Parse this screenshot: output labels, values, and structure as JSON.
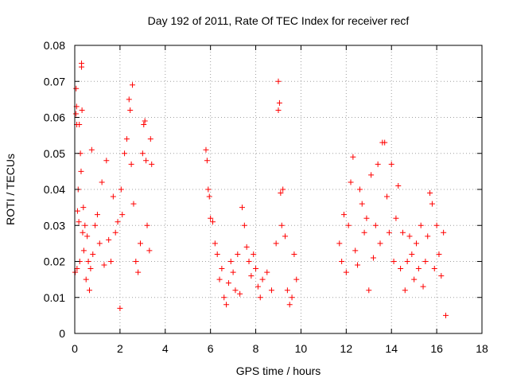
{
  "chart_data": {
    "type": "scatter",
    "title": "Day 192 of 2011, Rate Of TEC Index for receiver recf",
    "xlabel": "GPS time / hours",
    "ylabel": "ROTI / TECUs",
    "xlim": [
      0,
      18
    ],
    "ylim": [
      0,
      0.08
    ],
    "x_ticks": [
      "0",
      "2",
      "4",
      "6",
      "8",
      "10",
      "12",
      "14",
      "16",
      "18"
    ],
    "y_ticks": [
      "0",
      "0.01",
      "0.02",
      "0.03",
      "0.04",
      "0.05",
      "0.06",
      "0.07",
      "0.08"
    ],
    "grid": true,
    "marker": "plus",
    "color": "#ff0000",
    "series": [
      {
        "name": "",
        "points": [
          [
            0.02,
            0.017
          ],
          [
            0.05,
            0.061
          ],
          [
            0.06,
            0.068
          ],
          [
            0.08,
            0.063
          ],
          [
            0.09,
            0.058
          ],
          [
            0.1,
            0.018
          ],
          [
            0.12,
            0.034
          ],
          [
            0.15,
            0.04
          ],
          [
            0.18,
            0.031
          ],
          [
            0.2,
            0.058
          ],
          [
            0.22,
            0.02
          ],
          [
            0.25,
            0.05
          ],
          [
            0.28,
            0.045
          ],
          [
            0.3,
            0.075
          ],
          [
            0.32,
            0.062
          ],
          [
            0.35,
            0.028
          ],
          [
            0.38,
            0.035
          ],
          [
            0.4,
            0.023
          ],
          [
            0.45,
            0.03
          ],
          [
            0.5,
            0.015
          ],
          [
            0.55,
            0.027
          ],
          [
            0.6,
            0.02
          ],
          [
            0.65,
            0.012
          ],
          [
            0.7,
            0.018
          ],
          [
            0.75,
            0.051
          ],
          [
            0.8,
            0.022
          ],
          [
            0.9,
            0.03
          ],
          [
            1.0,
            0.033
          ],
          [
            1.1,
            0.025
          ],
          [
            1.2,
            0.042
          ],
          [
            1.3,
            0.019
          ],
          [
            1.4,
            0.048
          ],
          [
            1.5,
            0.026
          ],
          [
            1.6,
            0.02
          ],
          [
            1.7,
            0.038
          ],
          [
            1.8,
            0.028
          ],
          [
            1.9,
            0.031
          ],
          [
            2.0,
            0.007
          ],
          [
            2.05,
            0.04
          ],
          [
            2.1,
            0.033
          ],
          [
            2.2,
            0.05
          ],
          [
            2.3,
            0.054
          ],
          [
            2.4,
            0.065
          ],
          [
            2.45,
            0.062
          ],
          [
            2.5,
            0.047
          ],
          [
            2.55,
            0.069
          ],
          [
            2.6,
            0.036
          ],
          [
            2.7,
            0.02
          ],
          [
            2.8,
            0.017
          ],
          [
            2.9,
            0.025
          ],
          [
            3.0,
            0.05
          ],
          [
            3.05,
            0.058
          ],
          [
            3.1,
            0.059
          ],
          [
            3.15,
            0.048
          ],
          [
            3.2,
            0.03
          ],
          [
            3.3,
            0.023
          ],
          [
            3.35,
            0.054
          ],
          [
            3.4,
            0.047
          ],
          [
            0.3,
            0.074
          ],
          [
            9.0,
            0.062
          ],
          [
            5.8,
            0.051
          ],
          [
            5.85,
            0.048
          ],
          [
            5.9,
            0.04
          ],
          [
            5.95,
            0.038
          ],
          [
            6.0,
            0.032
          ],
          [
            6.1,
            0.031
          ],
          [
            6.2,
            0.025
          ],
          [
            6.3,
            0.022
          ],
          [
            6.4,
            0.015
          ],
          [
            6.5,
            0.018
          ],
          [
            6.6,
            0.01
          ],
          [
            6.7,
            0.008
          ],
          [
            6.8,
            0.014
          ],
          [
            6.9,
            0.02
          ],
          [
            7.0,
            0.017
          ],
          [
            7.1,
            0.012
          ],
          [
            7.2,
            0.022
          ],
          [
            7.3,
            0.011
          ],
          [
            7.4,
            0.035
          ],
          [
            7.5,
            0.03
          ],
          [
            7.6,
            0.024
          ],
          [
            7.7,
            0.02
          ],
          [
            7.8,
            0.016
          ],
          [
            7.9,
            0.022
          ],
          [
            8.0,
            0.018
          ],
          [
            8.1,
            0.013
          ],
          [
            8.2,
            0.01
          ],
          [
            8.3,
            0.015
          ],
          [
            8.5,
            0.017
          ],
          [
            8.7,
            0.012
          ],
          [
            8.9,
            0.025
          ],
          [
            9.0,
            0.07
          ],
          [
            9.05,
            0.064
          ],
          [
            9.1,
            0.039
          ],
          [
            9.15,
            0.03
          ],
          [
            9.2,
            0.04
          ],
          [
            9.3,
            0.027
          ],
          [
            9.4,
            0.012
          ],
          [
            9.5,
            0.008
          ],
          [
            9.6,
            0.01
          ],
          [
            9.7,
            0.022
          ],
          [
            9.8,
            0.015
          ],
          [
            11.7,
            0.025
          ],
          [
            11.8,
            0.02
          ],
          [
            11.9,
            0.033
          ],
          [
            12.0,
            0.017
          ],
          [
            12.1,
            0.03
          ],
          [
            12.2,
            0.042
          ],
          [
            12.3,
            0.049
          ],
          [
            12.4,
            0.023
          ],
          [
            12.5,
            0.019
          ],
          [
            12.6,
            0.04
          ],
          [
            12.7,
            0.036
          ],
          [
            12.8,
            0.028
          ],
          [
            12.9,
            0.032
          ],
          [
            13.0,
            0.012
          ],
          [
            13.1,
            0.044
          ],
          [
            13.2,
            0.021
          ],
          [
            13.3,
            0.03
          ],
          [
            13.4,
            0.047
          ],
          [
            13.5,
            0.025
          ],
          [
            13.6,
            0.053
          ],
          [
            13.7,
            0.053
          ],
          [
            13.8,
            0.038
          ],
          [
            13.9,
            0.028
          ],
          [
            14.0,
            0.047
          ],
          [
            14.1,
            0.02
          ],
          [
            14.2,
            0.032
          ],
          [
            14.3,
            0.041
          ],
          [
            14.4,
            0.018
          ],
          [
            14.5,
            0.028
          ],
          [
            14.6,
            0.012
          ],
          [
            14.7,
            0.02
          ],
          [
            14.8,
            0.027
          ],
          [
            14.9,
            0.022
          ],
          [
            15.0,
            0.015
          ],
          [
            15.1,
            0.025
          ],
          [
            15.2,
            0.018
          ],
          [
            15.3,
            0.03
          ],
          [
            15.4,
            0.013
          ],
          [
            15.5,
            0.02
          ],
          [
            15.6,
            0.027
          ],
          [
            15.7,
            0.039
          ],
          [
            15.8,
            0.036
          ],
          [
            15.9,
            0.018
          ],
          [
            16.0,
            0.03
          ],
          [
            16.1,
            0.022
          ],
          [
            16.2,
            0.016
          ],
          [
            16.3,
            0.028
          ],
          [
            16.4,
            0.005
          ]
        ]
      }
    ]
  }
}
